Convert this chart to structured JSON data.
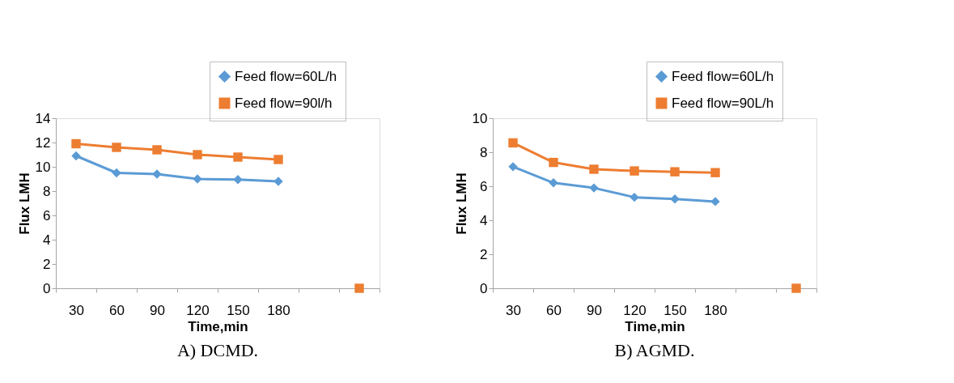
{
  "chart_data": [
    {
      "type": "line",
      "xlabel": "Time,min",
      "ylabel": "Flux LMH",
      "annotations": [
        "A) DCMD."
      ],
      "categories": [
        "30",
        "60",
        "90",
        "120",
        "150",
        "180",
        null,
        null
      ],
      "ylim": [
        0,
        14
      ],
      "yticks": [
        0,
        2,
        4,
        6,
        8,
        10,
        12,
        14
      ],
      "grid": false,
      "legend": "top right",
      "series": [
        {
          "name": "Feed flow=60L/h",
          "color": "#5b9bd5",
          "marker": "diamond",
          "values": [
            10.9,
            9.5,
            9.4,
            9.0,
            8.95,
            8.8,
            null,
            null
          ]
        },
        {
          "name": "Feed flow=90l/h",
          "color": "#ed7d31",
          "marker": "square",
          "values": [
            11.9,
            11.6,
            11.4,
            11.0,
            10.8,
            10.6,
            null,
            0
          ]
        }
      ]
    },
    {
      "type": "line",
      "xlabel": "Time,min",
      "ylabel": "Flux LMH",
      "annotations": [
        "B) AGMD."
      ],
      "categories": [
        "30",
        "60",
        "90",
        "120",
        "150",
        "180",
        null,
        null
      ],
      "ylim": [
        0,
        10
      ],
      "yticks": [
        0,
        2,
        4,
        6,
        8,
        10
      ],
      "grid": false,
      "legend": "top right",
      "series": [
        {
          "name": "Feed flow=60L/h",
          "color": "#5b9bd5",
          "marker": "diamond",
          "values": [
            7.15,
            6.2,
            5.9,
            5.35,
            5.25,
            5.1,
            null,
            null
          ]
        },
        {
          "name": "Feed flow=90L/h",
          "color": "#ed7d31",
          "marker": "square",
          "values": [
            8.55,
            7.4,
            7.0,
            6.9,
            6.85,
            6.8,
            null,
            0
          ]
        }
      ]
    }
  ]
}
